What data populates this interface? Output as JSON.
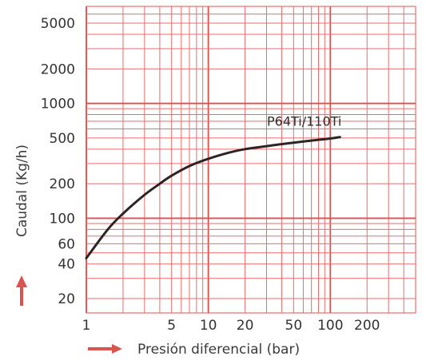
{
  "colors": {
    "grid": "#ee6a6a",
    "grid_bold": "#e24c4c",
    "curve": "#2e2424",
    "arrow": "#d9534f",
    "text": "#333333"
  },
  "chart_data": {
    "type": "line",
    "title": "",
    "xlabel": "Presión diferencial (bar)",
    "ylabel": "Caudal (Kg/h)",
    "xscale": "log",
    "yscale": "log",
    "grid": true,
    "xlim": [
      1,
      500
    ],
    "ylim": [
      15,
      7000
    ],
    "x_ticks": [
      1,
      5,
      10,
      20,
      50,
      100,
      200
    ],
    "x_tick_labels": [
      "1",
      "5",
      "10",
      "20",
      "50",
      "100",
      "200"
    ],
    "y_ticks": [
      20,
      40,
      60,
      100,
      200,
      500,
      1000,
      2000,
      5000
    ],
    "y_tick_labels": [
      "20",
      "40",
      "60",
      "100",
      "200",
      "500",
      "1000",
      "2000",
      "5000"
    ],
    "series": [
      {
        "name": "P64Ti/110Ti",
        "x": [
          1,
          1.5,
          2,
          3,
          4,
          5,
          7,
          10,
          15,
          20,
          30,
          50,
          70,
          100,
          120
        ],
        "y": [
          45,
          80,
          110,
          160,
          200,
          235,
          285,
          330,
          375,
          400,
          425,
          455,
          475,
          495,
          510
        ]
      }
    ]
  }
}
